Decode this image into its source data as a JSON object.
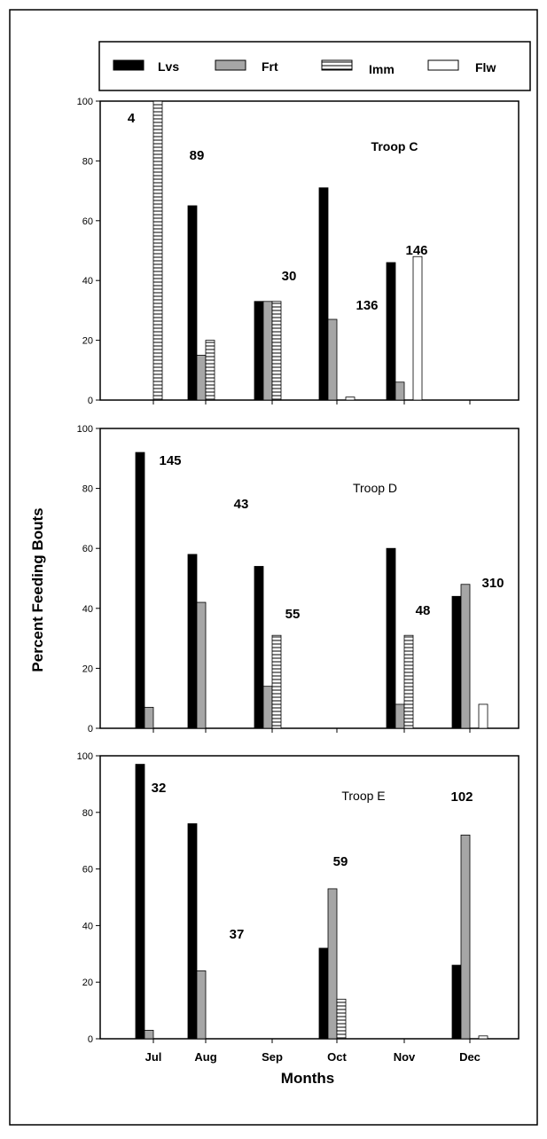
{
  "legend": {
    "items": [
      {
        "label": "Lvs",
        "pattern": "solid-black"
      },
      {
        "label": "Frt",
        "pattern": "solid-gray"
      },
      {
        "label": "Imm",
        "pattern": "horizontal-hatch"
      },
      {
        "label": "Flw",
        "pattern": "white"
      }
    ]
  },
  "colors": {
    "lvs": "#000000",
    "frt": "#a6a6a6",
    "imm": "#ffffff",
    "flw": "#ffffff",
    "frame": "#000000"
  },
  "ylabel": "Percent Feeding Bouts",
  "xlabel": "Months",
  "chart_data": [
    {
      "type": "bar",
      "title": "Troop C",
      "categories": [
        "Jul",
        "Aug",
        "Sep",
        "Oct",
        "Nov",
        "Dec"
      ],
      "ylim": [
        0,
        100
      ],
      "yticks": [
        0,
        20,
        40,
        60,
        80,
        100
      ],
      "series": [
        {
          "name": "Lvs",
          "values": [
            0,
            65,
            33,
            71,
            46,
            0
          ]
        },
        {
          "name": "Frt",
          "values": [
            0,
            15,
            33,
            27,
            6,
            0
          ]
        },
        {
          "name": "Imm",
          "values": [
            100,
            20,
            33,
            0,
            0,
            0
          ]
        },
        {
          "name": "Flw",
          "values": [
            0,
            0,
            0,
            1,
            48,
            0
          ]
        }
      ],
      "annotations": [
        {
          "text": "4",
          "month": "Jul"
        },
        {
          "text": "89",
          "month": "Aug"
        },
        {
          "text": "30",
          "month": "Sep"
        },
        {
          "text": "136",
          "month": "Oct"
        },
        {
          "text": "146",
          "month": "Nov"
        }
      ]
    },
    {
      "type": "bar",
      "title": "Troop D",
      "categories": [
        "Jul",
        "Aug",
        "Sep",
        "Oct",
        "Nov",
        "Dec"
      ],
      "ylim": [
        0,
        100
      ],
      "yticks": [
        0,
        20,
        40,
        60,
        80,
        100
      ],
      "series": [
        {
          "name": "Lvs",
          "values": [
            92,
            58,
            54,
            0,
            60,
            44
          ]
        },
        {
          "name": "Frt",
          "values": [
            7,
            42,
            14,
            0,
            8,
            48
          ]
        },
        {
          "name": "Imm",
          "values": [
            0,
            0,
            31,
            0,
            31,
            0
          ]
        },
        {
          "name": "Flw",
          "values": [
            0,
            0,
            0,
            0,
            0,
            8
          ]
        }
      ],
      "annotations": [
        {
          "text": "145",
          "month": "Jul"
        },
        {
          "text": "43",
          "month": "Aug"
        },
        {
          "text": "55",
          "month": "Sep"
        },
        {
          "text": "48",
          "month": "Nov"
        },
        {
          "text": "310",
          "month": "Dec"
        }
      ]
    },
    {
      "type": "bar",
      "title": "Troop E",
      "categories": [
        "Jul",
        "Aug",
        "Sep",
        "Oct",
        "Nov",
        "Dec"
      ],
      "ylim": [
        0,
        100
      ],
      "yticks": [
        0,
        20,
        40,
        60,
        80,
        100
      ],
      "series": [
        {
          "name": "Lvs",
          "values": [
            97,
            76,
            0,
            32,
            0,
            26
          ]
        },
        {
          "name": "Frt",
          "values": [
            3,
            24,
            0,
            53,
            0,
            72
          ]
        },
        {
          "name": "Imm",
          "values": [
            0,
            0,
            0,
            14,
            0,
            0
          ]
        },
        {
          "name": "Flw",
          "values": [
            0,
            0,
            0,
            0,
            0,
            1
          ]
        }
      ],
      "annotations": [
        {
          "text": "32",
          "month": "Jul"
        },
        {
          "text": "37",
          "month": "Aug"
        },
        {
          "text": "59",
          "month": "Oct"
        },
        {
          "text": "102",
          "month": "Dec"
        }
      ]
    }
  ]
}
